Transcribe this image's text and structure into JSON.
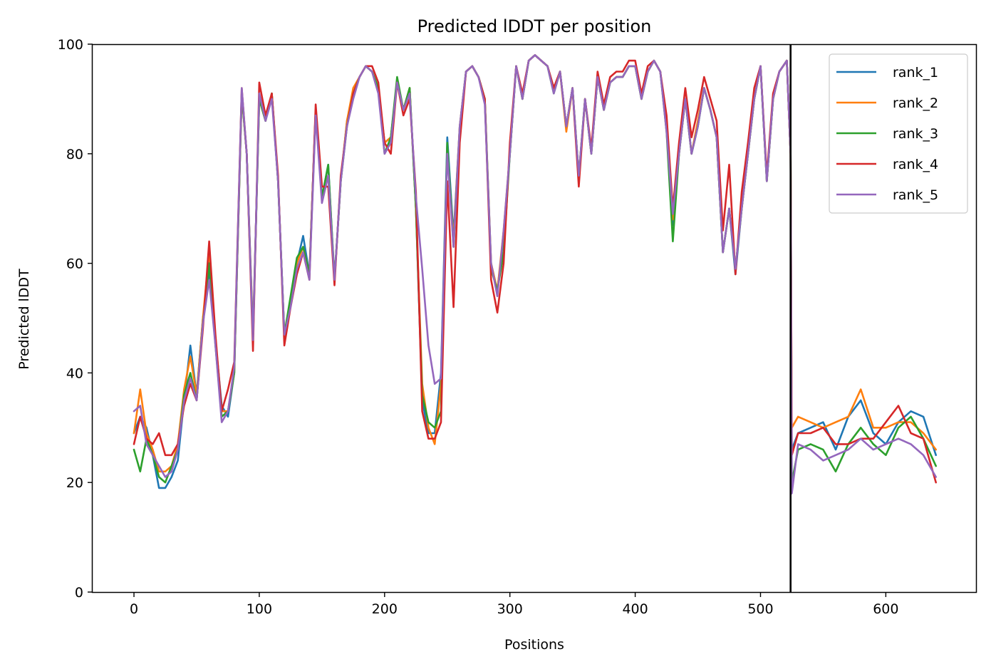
{
  "chart_data": {
    "type": "line",
    "title": "Predicted lDDT per position",
    "xlabel": "Positions",
    "ylabel": "Predicted lDDT",
    "xlim": [
      -33,
      672
    ],
    "ylim": [
      0,
      100
    ],
    "xticks": [
      0,
      100,
      200,
      300,
      400,
      500,
      600
    ],
    "yticks": [
      0,
      20,
      40,
      60,
      80,
      100
    ],
    "grid": false,
    "legend_position": "top-right",
    "vline_x": 524,
    "series": [
      {
        "name": "rank_1",
        "color": "#1f77b4",
        "x": [
          0,
          5,
          10,
          15,
          20,
          25,
          30,
          35,
          40,
          45,
          50,
          55,
          60,
          65,
          70,
          75,
          80,
          86,
          90,
          95,
          100,
          105,
          110,
          115,
          120,
          125,
          130,
          135,
          140,
          145,
          150,
          155,
          160,
          165,
          170,
          175,
          180,
          185,
          190,
          195,
          200,
          205,
          210,
          215,
          220,
          225,
          230,
          235,
          240,
          245,
          250,
          255,
          260,
          265,
          270,
          275,
          280,
          285,
          290,
          295,
          300,
          305,
          310,
          315,
          320,
          325,
          330,
          335,
          340,
          345,
          350,
          355,
          360,
          365,
          370,
          375,
          380,
          385,
          390,
          395,
          400,
          405,
          410,
          415,
          420,
          425,
          430,
          435,
          440,
          445,
          450,
          455,
          460,
          465,
          470,
          475,
          480,
          485,
          490,
          495,
          500,
          505,
          510,
          515,
          521,
          524,
          525,
          530,
          540,
          550,
          560,
          570,
          580,
          590,
          600,
          610,
          620,
          630,
          640
        ],
        "y": [
          29,
          32,
          30,
          25,
          19,
          19,
          21,
          24,
          35,
          45,
          36,
          50,
          58,
          46,
          34,
          32,
          40,
          91,
          80,
          47,
          90,
          86,
          91,
          75,
          47,
          53,
          60,
          65,
          58,
          88,
          72,
          78,
          57,
          75,
          86,
          91,
          94,
          96,
          95,
          92,
          82,
          83,
          93,
          88,
          92,
          70,
          35,
          29,
          29,
          40,
          83,
          65,
          85,
          95,
          96,
          94,
          90,
          60,
          55,
          65,
          80,
          96,
          90,
          97,
          98,
          97,
          96,
          92,
          95,
          85,
          92,
          75,
          90,
          80,
          94,
          88,
          93,
          94,
          94,
          96,
          96,
          90,
          95,
          97,
          95,
          85,
          67,
          80,
          90,
          80,
          85,
          92,
          88,
          83,
          62,
          70,
          58,
          70,
          80,
          90,
          96,
          75,
          90,
          95,
          97,
          80,
          26,
          29,
          30,
          31,
          26,
          32,
          35,
          29,
          27,
          31,
          33,
          32,
          25
        ],
        "y_interpretation_note": null
      },
      {
        "name": "rank_2",
        "color": "#ff7f0e",
        "x": [
          0,
          5,
          10,
          15,
          20,
          25,
          30,
          35,
          40,
          45,
          50,
          55,
          60,
          65,
          70,
          75,
          80,
          86,
          90,
          95,
          100,
          105,
          110,
          115,
          120,
          125,
          130,
          135,
          140,
          145,
          150,
          155,
          160,
          165,
          170,
          175,
          180,
          185,
          190,
          195,
          200,
          205,
          210,
          215,
          220,
          225,
          230,
          235,
          240,
          245,
          250,
          255,
          260,
          265,
          270,
          275,
          280,
          285,
          290,
          295,
          300,
          305,
          310,
          315,
          320,
          325,
          330,
          335,
          340,
          345,
          350,
          355,
          360,
          365,
          370,
          375,
          380,
          385,
          390,
          395,
          400,
          405,
          410,
          415,
          420,
          425,
          430,
          435,
          440,
          445,
          450,
          455,
          460,
          465,
          470,
          475,
          480,
          485,
          490,
          495,
          500,
          505,
          510,
          515,
          521,
          524,
          525,
          530,
          540,
          550,
          560,
          570,
          580,
          590,
          600,
          610,
          620,
          630,
          640
        ],
        "y": [
          29,
          37,
          29,
          26,
          22,
          22,
          23,
          27,
          37,
          43,
          36,
          50,
          62,
          46,
          33,
          33,
          40,
          91,
          80,
          47,
          90,
          86,
          91,
          75,
          47,
          53,
          60,
          63,
          58,
          88,
          72,
          76,
          57,
          75,
          86,
          92,
          94,
          96,
          95,
          92,
          82,
          83,
          93,
          88,
          92,
          70,
          38,
          30,
          27,
          38,
          81,
          64,
          85,
          95,
          96,
          94,
          90,
          60,
          55,
          66,
          80,
          96,
          90,
          97,
          98,
          97,
          96,
          92,
          95,
          84,
          92,
          76,
          90,
          80,
          94,
          88,
          93,
          94,
          94,
          96,
          96,
          90,
          95,
          97,
          95,
          85,
          68,
          80,
          90,
          80,
          86,
          92,
          88,
          83,
          62,
          70,
          59,
          70,
          80,
          90,
          96,
          75,
          90,
          95,
          97,
          80,
          30,
          32,
          31,
          30,
          31,
          32,
          37,
          30,
          30,
          31,
          31,
          29,
          26
        ],
        "y_interpretation_note": null
      },
      {
        "name": "rank_3",
        "color": "#2ca02c",
        "x": [
          0,
          5,
          10,
          15,
          20,
          25,
          30,
          35,
          40,
          45,
          50,
          55,
          60,
          65,
          70,
          75,
          80,
          86,
          90,
          95,
          100,
          105,
          110,
          115,
          120,
          125,
          130,
          135,
          140,
          145,
          150,
          155,
          160,
          165,
          170,
          175,
          180,
          185,
          190,
          195,
          200,
          205,
          210,
          215,
          220,
          225,
          230,
          235,
          240,
          245,
          250,
          255,
          260,
          265,
          270,
          275,
          280,
          285,
          290,
          295,
          300,
          305,
          310,
          315,
          320,
          325,
          330,
          335,
          340,
          345,
          350,
          355,
          360,
          365,
          370,
          375,
          380,
          385,
          390,
          395,
          400,
          405,
          410,
          415,
          420,
          425,
          430,
          435,
          440,
          445,
          450,
          455,
          460,
          465,
          470,
          475,
          480,
          485,
          490,
          495,
          500,
          505,
          510,
          515,
          521,
          524,
          525,
          530,
          540,
          550,
          560,
          570,
          580,
          590,
          600,
          610,
          620,
          630,
          640
        ],
        "y": [
          26,
          22,
          28,
          25,
          21,
          20,
          23,
          26,
          36,
          40,
          35,
          49,
          60,
          45,
          32,
          33,
          40,
          91,
          80,
          46,
          90,
          86,
          91,
          75,
          47,
          54,
          61,
          63,
          58,
          88,
          72,
          78,
          57,
          75,
          85,
          91,
          94,
          96,
          95,
          92,
          80,
          83,
          94,
          88,
          92,
          70,
          36,
          31,
          30,
          33,
          82,
          63,
          84,
          95,
          96,
          94,
          90,
          59,
          55,
          62,
          80,
          96,
          90,
          97,
          98,
          97,
          96,
          91,
          95,
          85,
          92,
          76,
          90,
          80,
          94,
          88,
          93,
          94,
          94,
          96,
          96,
          90,
          95,
          97,
          95,
          84,
          64,
          80,
          90,
          80,
          85,
          92,
          88,
          83,
          62,
          70,
          59,
          70,
          80,
          90,
          96,
          75,
          90,
          95,
          97,
          80,
          20,
          26,
          27,
          26,
          22,
          27,
          30,
          27,
          25,
          30,
          32,
          28,
          23
        ],
        "y_interpretation_note": null
      },
      {
        "name": "rank_4",
        "color": "#d62728",
        "x": [
          0,
          5,
          10,
          15,
          20,
          25,
          30,
          35,
          40,
          45,
          50,
          55,
          60,
          65,
          70,
          75,
          80,
          86,
          90,
          95,
          100,
          105,
          110,
          115,
          120,
          125,
          130,
          135,
          140,
          145,
          150,
          155,
          160,
          165,
          170,
          175,
          180,
          185,
          190,
          195,
          200,
          205,
          210,
          215,
          220,
          225,
          230,
          235,
          240,
          245,
          250,
          255,
          260,
          265,
          270,
          275,
          280,
          285,
          290,
          295,
          300,
          305,
          310,
          315,
          320,
          325,
          330,
          335,
          340,
          345,
          350,
          355,
          360,
          365,
          370,
          375,
          380,
          385,
          390,
          395,
          400,
          405,
          410,
          415,
          420,
          425,
          430,
          435,
          440,
          445,
          450,
          455,
          460,
          465,
          470,
          475,
          480,
          485,
          490,
          495,
          500,
          505,
          510,
          515,
          521,
          524,
          525,
          530,
          540,
          550,
          560,
          570,
          580,
          590,
          600,
          610,
          620,
          630,
          640
        ],
        "y": [
          27,
          32,
          28,
          27,
          29,
          25,
          25,
          27,
          34,
          38,
          35,
          48,
          64,
          47,
          33,
          37,
          42,
          92,
          80,
          44,
          93,
          87,
          91,
          76,
          45,
          52,
          58,
          62,
          57,
          89,
          74,
          74,
          56,
          76,
          85,
          91,
          94,
          96,
          96,
          93,
          82,
          80,
          93,
          87,
          90,
          73,
          33,
          28,
          28,
          31,
          75,
          52,
          82,
          95,
          96,
          94,
          90,
          57,
          51,
          60,
          82,
          96,
          91,
          97,
          98,
          97,
          96,
          92,
          95,
          85,
          92,
          74,
          90,
          81,
          95,
          89,
          94,
          95,
          95,
          97,
          97,
          91,
          96,
          97,
          95,
          87,
          70,
          82,
          92,
          83,
          88,
          94,
          90,
          86,
          66,
          78,
          58,
          73,
          82,
          92,
          96,
          76,
          91,
          95,
          97,
          80,
          25,
          29,
          29,
          30,
          27,
          27,
          28,
          28,
          31,
          34,
          29,
          28,
          20
        ],
        "y_interpretation_note": null
      },
      {
        "name": "rank_5",
        "color": "#9467bd",
        "x": [
          0,
          5,
          10,
          15,
          20,
          25,
          30,
          35,
          40,
          45,
          50,
          55,
          60,
          65,
          70,
          75,
          80,
          86,
          90,
          95,
          100,
          105,
          110,
          115,
          120,
          125,
          130,
          135,
          140,
          145,
          150,
          155,
          160,
          165,
          170,
          175,
          180,
          185,
          190,
          195,
          200,
          205,
          210,
          215,
          220,
          225,
          230,
          235,
          240,
          245,
          250,
          255,
          260,
          265,
          270,
          275,
          280,
          285,
          290,
          295,
          300,
          305,
          310,
          315,
          320,
          325,
          330,
          335,
          340,
          345,
          350,
          355,
          360,
          365,
          370,
          375,
          380,
          385,
          390,
          395,
          400,
          405,
          410,
          415,
          420,
          425,
          430,
          435,
          440,
          445,
          450,
          455,
          460,
          465,
          470,
          475,
          480,
          485,
          490,
          495,
          500,
          505,
          510,
          515,
          521,
          524,
          525,
          530,
          540,
          550,
          560,
          570,
          580,
          590,
          600,
          610,
          620,
          630,
          640
        ],
        "y": [
          33,
          34,
          27,
          25,
          23,
          21,
          22,
          26,
          35,
          39,
          35,
          49,
          57,
          45,
          31,
          33,
          41,
          92,
          80,
          46,
          91,
          86,
          90,
          75,
          47,
          52,
          59,
          62,
          57,
          87,
          71,
          76,
          57,
          75,
          85,
          90,
          94,
          96,
          95,
          91,
          80,
          82,
          93,
          88,
          91,
          72,
          59,
          45,
          38,
          39,
          80,
          63,
          85,
          95,
          96,
          94,
          89,
          60,
          54,
          66,
          80,
          96,
          90,
          97,
          98,
          97,
          96,
          91,
          95,
          85,
          92,
          76,
          90,
          80,
          94,
          88,
          93,
          94,
          94,
          96,
          96,
          90,
          95,
          97,
          95,
          84,
          69,
          80,
          90,
          80,
          85,
          92,
          88,
          83,
          62,
          70,
          59,
          70,
          80,
          90,
          96,
          75,
          90,
          95,
          97,
          80,
          18,
          27,
          26,
          24,
          25,
          26,
          28,
          26,
          27,
          28,
          27,
          25,
          21
        ],
        "y_interpretation_note": null
      }
    ]
  }
}
